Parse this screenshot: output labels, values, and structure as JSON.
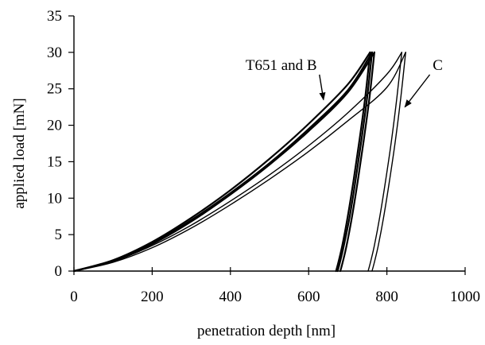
{
  "chart_data": {
    "type": "line",
    "title": "",
    "xlabel": "penetration depth [nm]",
    "ylabel": "applied load [mN]",
    "xlim": [
      0,
      1000
    ],
    "ylim": [
      0,
      35
    ],
    "x_ticks": [
      0,
      200,
      400,
      600,
      800,
      1000
    ],
    "y_ticks": [
      0,
      5,
      10,
      15,
      20,
      25,
      30,
      35
    ],
    "grid": false,
    "legend": "none",
    "line_color": "#000000",
    "annotations": [
      {
        "text": "T651 and B",
        "x": 530,
        "y": 27.6,
        "arrow_to": [
          638,
          23.5
        ]
      },
      {
        "text": "C",
        "x": 930,
        "y": 27.6,
        "arrow_to": [
          846,
          22.5
        ]
      }
    ],
    "series": [
      {
        "group": "T651 and B",
        "loading": {
          "x": [
            0,
            100,
            200,
            300,
            400,
            500,
            600,
            700,
            762
          ],
          "y": [
            0,
            1.4,
            3.8,
            7.0,
            10.7,
            14.8,
            19.5,
            24.8,
            30
          ]
        },
        "unloading": {
          "x": [
            762,
            750,
            735,
            720,
            705,
            690,
            680,
            674
          ],
          "y": [
            30,
            24,
            18,
            12.5,
            7.5,
            3.5,
            1.2,
            0
          ]
        }
      },
      {
        "group": "T651 and B",
        "loading": {
          "x": [
            0,
            100,
            200,
            300,
            400,
            500,
            600,
            700,
            757
          ],
          "y": [
            0,
            1.5,
            4.0,
            7.3,
            11.1,
            15.4,
            20.2,
            25.6,
            30
          ]
        },
        "unloading": {
          "x": [
            757,
            745,
            730,
            715,
            700,
            686,
            676,
            670
          ],
          "y": [
            30,
            24,
            18,
            12.5,
            7.5,
            3.5,
            1.2,
            0
          ]
        }
      },
      {
        "group": "T651 and B",
        "loading": {
          "x": [
            0,
            100,
            200,
            300,
            400,
            500,
            600,
            700,
            768
          ],
          "y": [
            0,
            1.4,
            3.7,
            6.8,
            10.5,
            14.6,
            19.2,
            24.5,
            30
          ]
        },
        "unloading": {
          "x": [
            768,
            756,
            741,
            726,
            711,
            697,
            687,
            681
          ],
          "y": [
            30,
            24,
            18,
            12.5,
            7.5,
            3.5,
            1.2,
            0
          ]
        }
      },
      {
        "group": "C",
        "loading": {
          "x": [
            0,
            100,
            200,
            300,
            400,
            500,
            600,
            700,
            800,
            838
          ],
          "y": [
            0,
            1.3,
            3.5,
            6.3,
            9.6,
            13.2,
            17.2,
            21.7,
            27.0,
            30
          ]
        },
        "unloading": {
          "x": [
            838,
            826,
            812,
            797,
            782,
            768,
            758,
            752
          ],
          "y": [
            30,
            24,
            18,
            12.5,
            7.5,
            3.5,
            1.2,
            0
          ]
        }
      },
      {
        "group": "C",
        "loading": {
          "x": [
            0,
            100,
            200,
            300,
            400,
            500,
            600,
            700,
            800,
            848
          ],
          "y": [
            0,
            1.2,
            3.2,
            5.9,
            9.1,
            12.6,
            16.4,
            20.6,
            25.2,
            30
          ]
        },
        "unloading": {
          "x": [
            848,
            836,
            822,
            807,
            792,
            778,
            768,
            762
          ],
          "y": [
            30,
            24,
            18,
            12.5,
            7.5,
            3.5,
            1.2,
            0
          ]
        }
      }
    ]
  }
}
